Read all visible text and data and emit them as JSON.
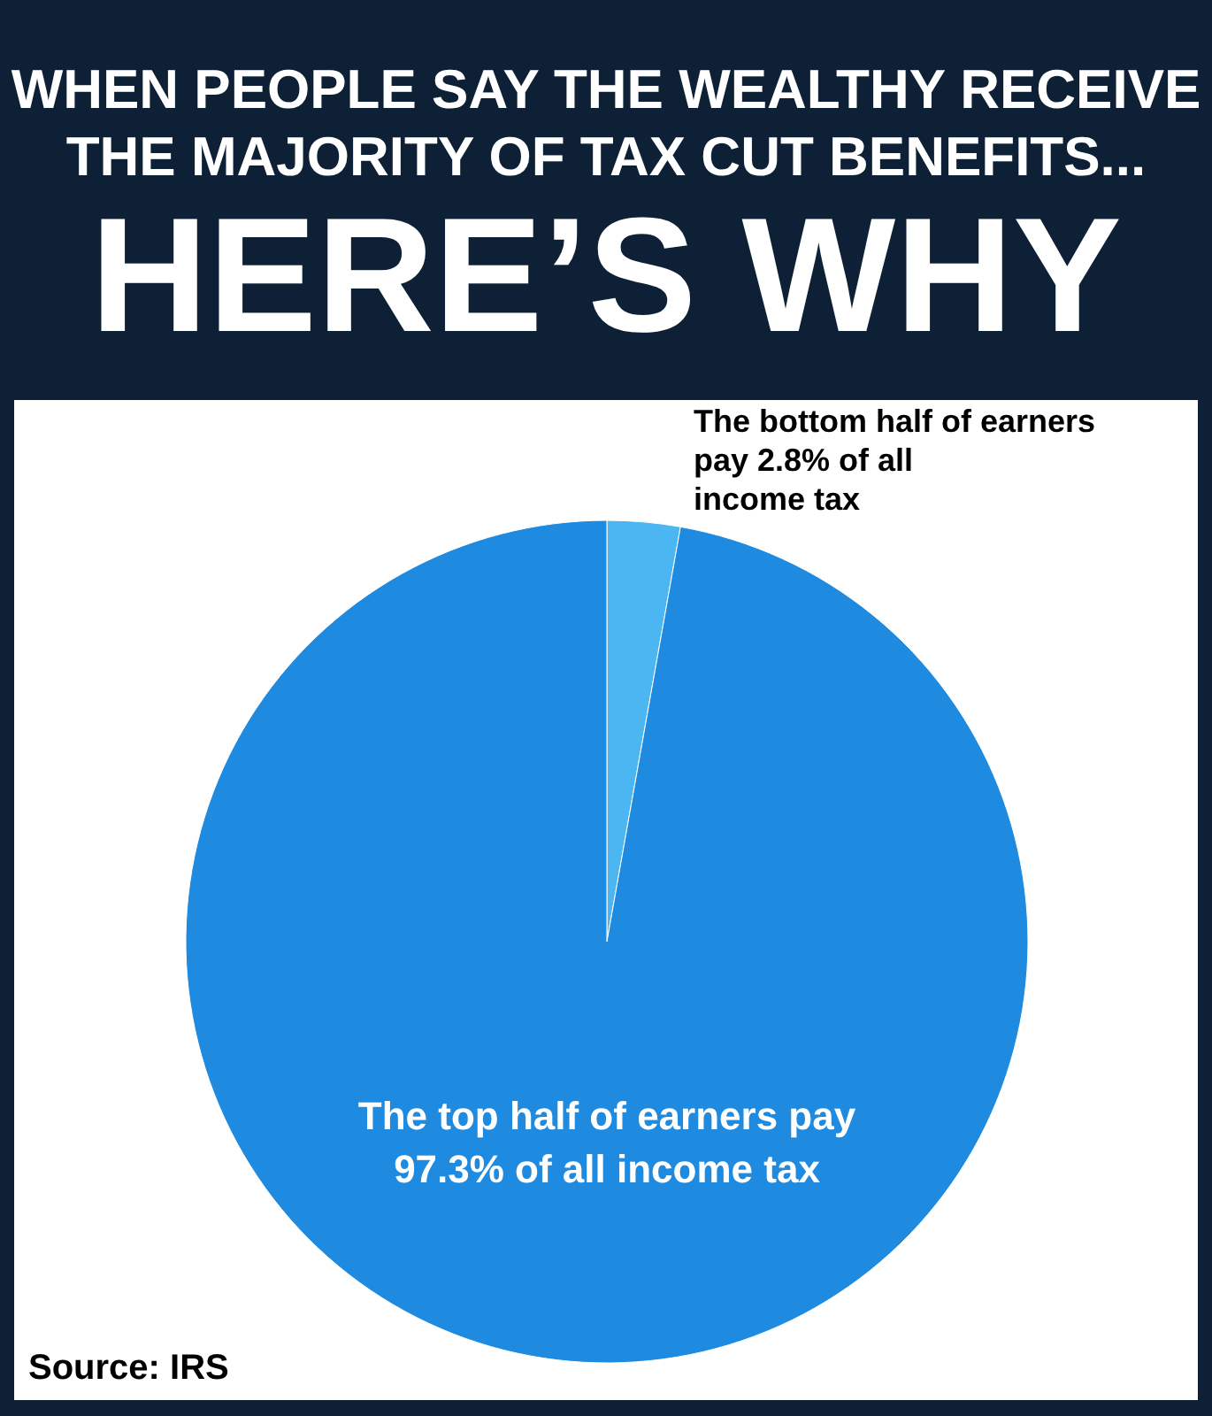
{
  "chart_data": {
    "type": "pie",
    "title": "WHEN PEOPLE SAY THE WEALTHY RECEIVE\nTHE MAJORITY OF TAX CUT BENEFITS...",
    "subtitle": "HERE’S WHY",
    "categories": [
      "The bottom half of earners\npay 2.8% of all\nincome tax",
      "The top half of earners pay\n97.3% of all income tax"
    ],
    "values": [
      2.8,
      97.3
    ],
    "colors": [
      "#4cb6f2",
      "#1e8ae0"
    ],
    "annotations": [
      "Source: IRS"
    ],
    "legend": false
  }
}
